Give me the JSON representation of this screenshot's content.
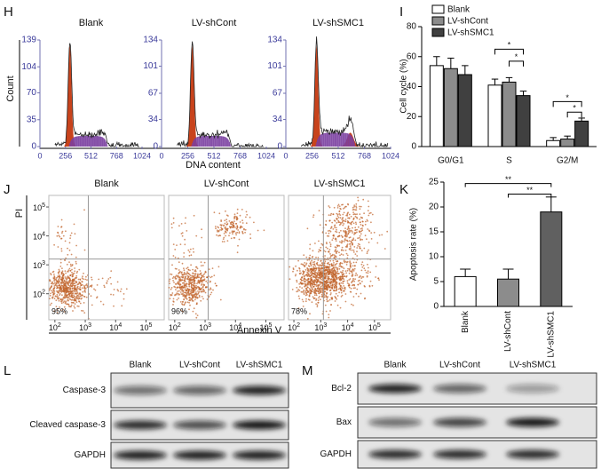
{
  "panel_labels": [
    "H",
    "I",
    "J",
    "K",
    "L",
    "M"
  ],
  "flow_cycle": {
    "plots": [
      {
        "title": "Blank",
        "ylim": [
          0,
          139
        ],
        "yticks": [
          0,
          35,
          70,
          104,
          139
        ]
      },
      {
        "title": "LV-shCont",
        "ylim": [
          0,
          134
        ],
        "yticks": [
          0,
          34,
          67,
          101,
          134
        ]
      },
      {
        "title": "LV-shSMC1",
        "ylim": [
          0,
          134
        ],
        "yticks": [
          0,
          34,
          67,
          101,
          134
        ]
      }
    ],
    "xlim": [
      0,
      1024
    ],
    "xticks": [
      0,
      256,
      512,
      768,
      1024
    ],
    "x_label": "DNA content",
    "y_label": "Count"
  },
  "flow_apoptosis": {
    "plots": [
      {
        "title": "Blank",
        "percent": "95%"
      },
      {
        "title": "LV-shCont",
        "percent": "96%"
      },
      {
        "title": "LV-shSMC1",
        "percent": "78%"
      }
    ],
    "log_base": "10",
    "xlim": [
      1.8,
      5.6
    ],
    "ylim": [
      1.1,
      5.4
    ],
    "xticks": [
      2,
      3,
      4,
      5
    ],
    "yticks": [
      2,
      3,
      4,
      5
    ],
    "x_label": "Annexin V",
    "y_label": "PI"
  },
  "chart_data": [
    {
      "type": "bar",
      "y_label": "Cell cycle (%)",
      "categories": [
        "G0/G1",
        "S",
        "G2/M"
      ],
      "series": [
        {
          "name": "Blank",
          "color": "#ffffff",
          "values": [
            54,
            41,
            4
          ],
          "errors": [
            6,
            4,
            2
          ]
        },
        {
          "name": "LV-shCont",
          "color": "#8c8c8c",
          "values": [
            52,
            43,
            5
          ],
          "errors": [
            7,
            3,
            2
          ]
        },
        {
          "name": "LV-shSMC1",
          "color": "#404040",
          "values": [
            48,
            34,
            17
          ],
          "errors": [
            6,
            3,
            2
          ]
        }
      ],
      "ylim": [
        0,
        80
      ],
      "yticks": [
        0,
        20,
        40,
        60,
        80
      ],
      "legend": "top-left",
      "annotations": [
        "*",
        "*",
        "*",
        "*"
      ]
    },
    {
      "type": "bar",
      "y_label": "Apoptosis rate (%)",
      "categories": [
        "Blank",
        "LV-shCont",
        "LV-shSMC1"
      ],
      "colors": [
        "#ffffff",
        "#8c8c8c",
        "#606060"
      ],
      "values": [
        6,
        5.5,
        19
      ],
      "errors": [
        1.5,
        2,
        3
      ],
      "ylim": [
        0,
        25
      ],
      "yticks": [
        0,
        5,
        10,
        15,
        20,
        25
      ],
      "annotations": [
        "**",
        "**"
      ]
    }
  ],
  "blot_l": {
    "columns": [
      "Blank",
      "LV-shCont",
      "LV-shSMC1"
    ],
    "rows": [
      "Caspase-3",
      "Cleaved caspase-3",
      "GAPDH"
    ]
  },
  "blot_m": {
    "columns": [
      "Blank",
      "LV-shCont",
      "LV-shSMC1"
    ],
    "rows": [
      "Bcl-2",
      "Bax",
      "GAPDH"
    ]
  }
}
